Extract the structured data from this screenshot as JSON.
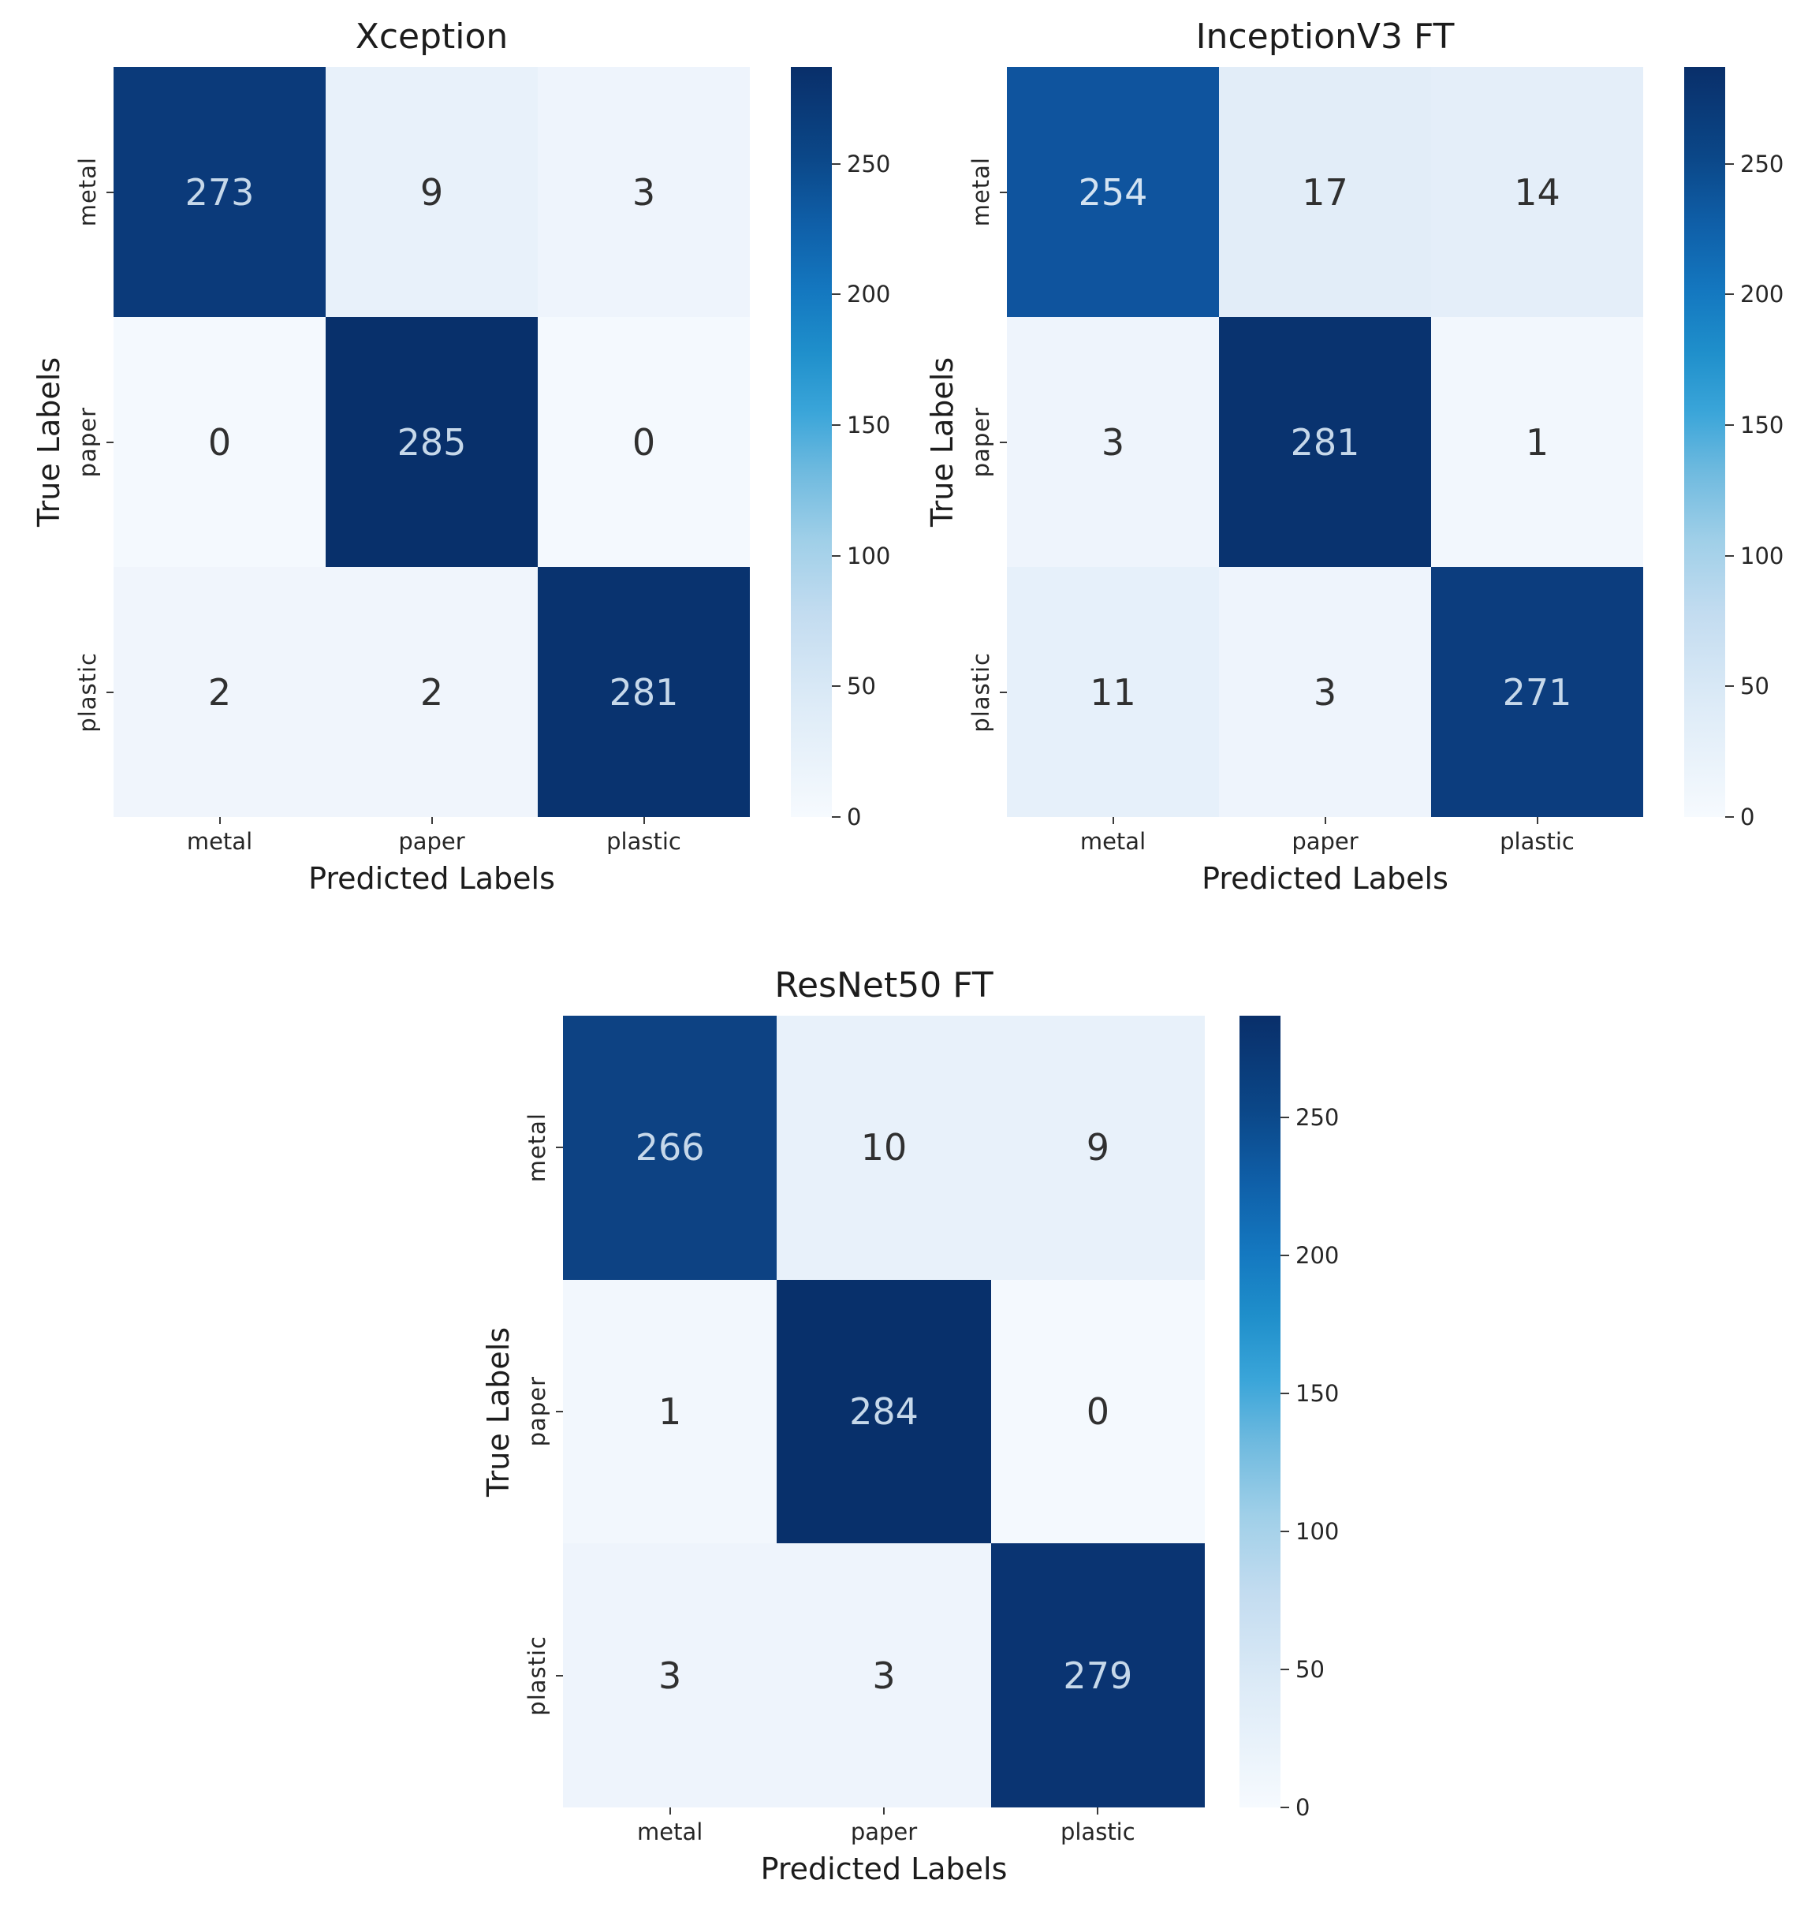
{
  "figure": {
    "background": "#ffffff",
    "colormap": "Blues",
    "text_color": "#262626",
    "dark_cell_text": "#c6d8ea",
    "light_cell_text": "#303030"
  },
  "chart_data": [
    {
      "type": "heatmap",
      "title": "Xception",
      "xlabel": "Predicted Labels",
      "ylabel": "True Labels",
      "x_categories": [
        "metal",
        "paper",
        "plastic"
      ],
      "y_categories": [
        "metal",
        "paper",
        "plastic"
      ],
      "matrix": [
        [
          273,
          9,
          3
        ],
        [
          0,
          285,
          0
        ],
        [
          2,
          2,
          281
        ]
      ],
      "colorbar_ticks": [
        0,
        50,
        100,
        150,
        200,
        250
      ],
      "colorbar_range": [
        0,
        287
      ],
      "colormap": "Blues",
      "colorbar_position": "right"
    },
    {
      "type": "heatmap",
      "title": "InceptionV3 FT",
      "xlabel": "Predicted Labels",
      "ylabel": "True Labels",
      "x_categories": [
        "metal",
        "paper",
        "plastic"
      ],
      "y_categories": [
        "metal",
        "paper",
        "plastic"
      ],
      "matrix": [
        [
          254,
          17,
          14
        ],
        [
          3,
          281,
          1
        ],
        [
          11,
          3,
          271
        ]
      ],
      "colorbar_ticks": [
        0,
        50,
        100,
        150,
        200,
        250
      ],
      "colorbar_range": [
        0,
        287
      ],
      "colormap": "Blues",
      "colorbar_position": "right"
    },
    {
      "type": "heatmap",
      "title": "ResNet50 FT",
      "xlabel": "Predicted Labels",
      "ylabel": "True Labels",
      "x_categories": [
        "metal",
        "paper",
        "plastic"
      ],
      "y_categories": [
        "metal",
        "paper",
        "plastic"
      ],
      "matrix": [
        [
          266,
          10,
          9
        ],
        [
          1,
          284,
          0
        ],
        [
          3,
          3,
          279
        ]
      ],
      "colorbar_ticks": [
        0,
        50,
        100,
        150,
        200,
        250
      ],
      "colorbar_range": [
        0,
        287
      ],
      "colormap": "Blues",
      "colorbar_position": "right"
    }
  ],
  "plots": [
    {
      "title": "Xception",
      "xlabel": "Predicted Labels",
      "ylabel": "True Labels",
      "xticks": [
        "metal",
        "paper",
        "plastic"
      ],
      "yticks": [
        "metal",
        "paper",
        "plastic"
      ],
      "cbticks": [
        "0",
        "50",
        "100",
        "150",
        "200",
        "250"
      ],
      "cells": [
        [
          {
            "v": "273",
            "bg": "#0b3a7a",
            "fg": "#c6d8ea"
          },
          {
            "v": "9",
            "bg": "#e8f1fa",
            "fg": "#303030"
          },
          {
            "v": "3",
            "bg": "#eef4fc",
            "fg": "#303030"
          }
        ],
        [
          {
            "v": "0",
            "bg": "#f4f9fe",
            "fg": "#303030"
          },
          {
            "v": "285",
            "bg": "#08306b",
            "fg": "#c6d8ea"
          },
          {
            "v": "0",
            "bg": "#f4f9fe",
            "fg": "#303030"
          }
        ],
        [
          {
            "v": "2",
            "bg": "#f0f5fc",
            "fg": "#303030"
          },
          {
            "v": "2",
            "bg": "#f0f5fc",
            "fg": "#303030"
          },
          {
            "v": "281",
            "bg": "#09336f",
            "fg": "#c6d8ea"
          }
        ]
      ]
    },
    {
      "title": "InceptionV3 FT",
      "xlabel": "Predicted Labels",
      "ylabel": "True Labels",
      "xticks": [
        "metal",
        "paper",
        "plastic"
      ],
      "yticks": [
        "metal",
        "paper",
        "plastic"
      ],
      "cbticks": [
        "0",
        "50",
        "100",
        "150",
        "200",
        "250"
      ],
      "cells": [
        [
          {
            "v": "254",
            "bg": "#0f549e",
            "fg": "#d3e3f2"
          },
          {
            "v": "17",
            "bg": "#e2edf8",
            "fg": "#303030"
          },
          {
            "v": "14",
            "bg": "#e4eef9",
            "fg": "#303030"
          }
        ],
        [
          {
            "v": "3",
            "bg": "#eef4fc",
            "fg": "#303030"
          },
          {
            "v": "281",
            "bg": "#09336f",
            "fg": "#c6d8ea"
          },
          {
            "v": "1",
            "bg": "#f2f7fd",
            "fg": "#303030"
          }
        ],
        [
          {
            "v": "11",
            "bg": "#e6f0fa",
            "fg": "#303030"
          },
          {
            "v": "3",
            "bg": "#eef4fc",
            "fg": "#303030"
          },
          {
            "v": "271",
            "bg": "#0c3d7e",
            "fg": "#c6d8ea"
          }
        ]
      ]
    },
    {
      "title": "ResNet50 FT",
      "xlabel": "Predicted Labels",
      "ylabel": "True Labels",
      "xticks": [
        "metal",
        "paper",
        "plastic"
      ],
      "yticks": [
        "metal",
        "paper",
        "plastic"
      ],
      "cbticks": [
        "0",
        "50",
        "100",
        "150",
        "200",
        "250"
      ],
      "cells": [
        [
          {
            "v": "266",
            "bg": "#0d4283",
            "fg": "#c6d8ea"
          },
          {
            "v": "10",
            "bg": "#e8f1fa",
            "fg": "#303030"
          },
          {
            "v": "9",
            "bg": "#e8f1fa",
            "fg": "#303030"
          }
        ],
        [
          {
            "v": "1",
            "bg": "#f2f7fd",
            "fg": "#303030"
          },
          {
            "v": "284",
            "bg": "#08306b",
            "fg": "#c6d8ea"
          },
          {
            "v": "0",
            "bg": "#f4f9fe",
            "fg": "#303030"
          }
        ],
        [
          {
            "v": "3",
            "bg": "#eef4fc",
            "fg": "#303030"
          },
          {
            "v": "3",
            "bg": "#eef4fc",
            "fg": "#303030"
          },
          {
            "v": "279",
            "bg": "#0a3472",
            "fg": "#c6d8ea"
          }
        ]
      ]
    }
  ]
}
